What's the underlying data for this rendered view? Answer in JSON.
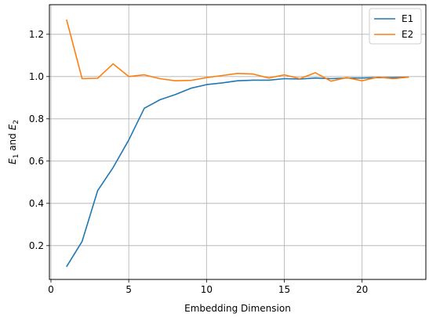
{
  "chart_data": {
    "type": "line",
    "title": "",
    "xlabel": "Embedding Dimension",
    "ylabel_parts": {
      "var1": "E",
      "sub1": "1",
      "conj": " and ",
      "var2": "E",
      "sub2": "2"
    },
    "xlim": [
      -0.1,
      24.1
    ],
    "ylim": [
      0.04,
      1.34
    ],
    "xticks": [
      0,
      5,
      10,
      15,
      20
    ],
    "yticks": [
      0.2,
      0.4,
      0.6,
      0.8,
      1.0,
      1.2
    ],
    "grid": true,
    "legend_position": "top-right",
    "series": [
      {
        "name": "E1",
        "color": "#1f77b4",
        "x": [
          1,
          2,
          3,
          4,
          5,
          6,
          7,
          8,
          9,
          10,
          11,
          12,
          13,
          14,
          15,
          16,
          17,
          18,
          19,
          20,
          21,
          22,
          23
        ],
        "values": [
          0.1,
          0.22,
          0.46,
          0.57,
          0.7,
          0.85,
          0.89,
          0.915,
          0.945,
          0.962,
          0.97,
          0.98,
          0.983,
          0.983,
          0.99,
          0.988,
          0.993,
          0.99,
          0.993,
          0.993,
          0.995,
          0.995,
          0.997
        ]
      },
      {
        "name": "E2",
        "color": "#ff7f0e",
        "x": [
          1,
          2,
          3,
          4,
          5,
          6,
          7,
          8,
          9,
          10,
          11,
          12,
          13,
          14,
          15,
          16,
          17,
          18,
          19,
          20,
          21,
          22,
          23
        ],
        "values": [
          1.27,
          0.99,
          0.992,
          1.06,
          1.0,
          1.008,
          0.99,
          0.98,
          0.982,
          0.995,
          1.005,
          1.015,
          1.012,
          0.993,
          1.008,
          0.99,
          1.018,
          0.978,
          0.995,
          0.98,
          0.997,
          0.99,
          0.997
        ]
      }
    ]
  }
}
